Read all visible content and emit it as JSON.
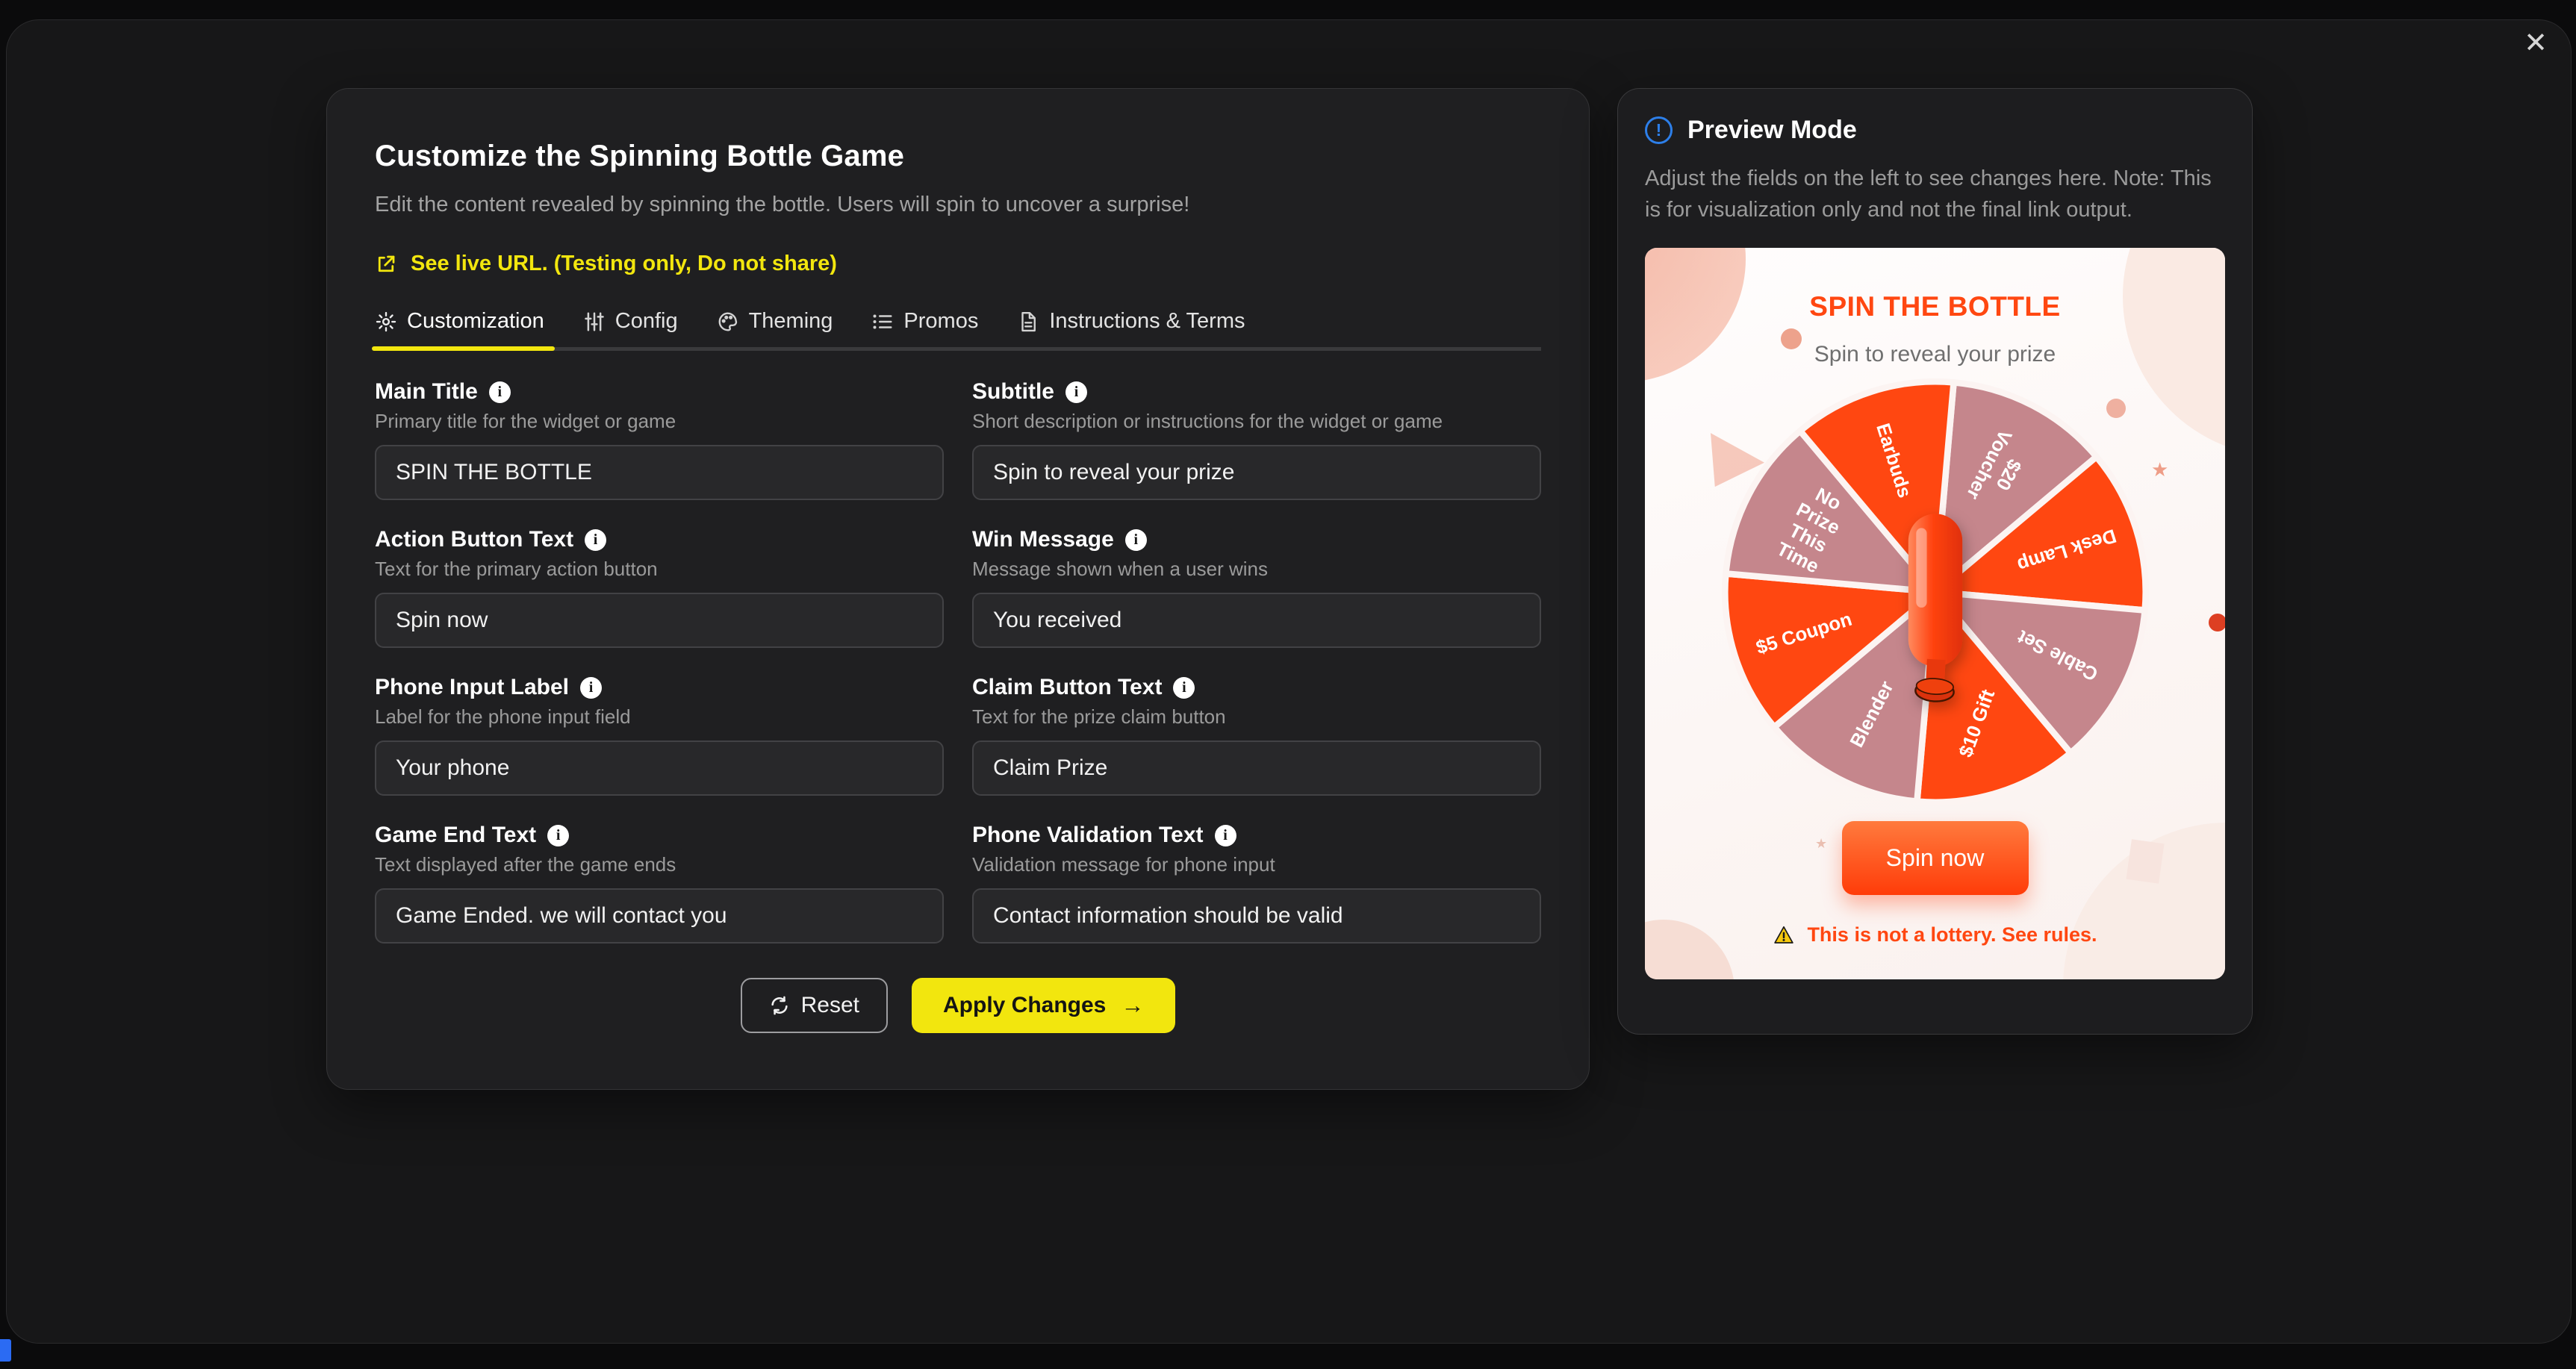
{
  "overlay": {
    "close_icon": "✕"
  },
  "dialog": {
    "title": "Customize the Spinning Bottle Game",
    "description": "Edit the content revealed by spinning the bottle. Users will spin to uncover a surprise!",
    "live_url_link": "See live URL. (Testing only, Do not share)",
    "tabs": [
      {
        "label": "Customization",
        "icon": "gear-icon",
        "active": true
      },
      {
        "label": "Config",
        "icon": "sliders-icon",
        "active": false
      },
      {
        "label": "Theming",
        "icon": "palette-icon",
        "active": false
      },
      {
        "label": "Promos",
        "icon": "list-icon",
        "active": false
      },
      {
        "label": "Instructions & Terms",
        "icon": "document-icon",
        "active": false
      }
    ],
    "fields": [
      {
        "label": "Main Title",
        "help": "Primary title for the widget or game",
        "value": "SPIN THE BOTTLE"
      },
      {
        "label": "Subtitle",
        "help": "Short description or instructions for the widget or game",
        "value": "Spin to reveal your prize"
      },
      {
        "label": "Action Button Text",
        "help": "Text for the primary action button",
        "value": "Spin now"
      },
      {
        "label": "Win Message",
        "help": "Message shown when a user wins",
        "value": "You received"
      },
      {
        "label": "Phone Input Label",
        "help": "Label for the phone input field",
        "value": "Your phone"
      },
      {
        "label": "Claim Button Text",
        "help": "Text for the prize claim button",
        "value": "Claim Prize"
      },
      {
        "label": "Game End Text",
        "help": "Text displayed after the game ends",
        "value": "Game Ended. we will contact you"
      },
      {
        "label": "Phone Validation Text",
        "help": "Validation message for phone input",
        "value": "Contact information should be valid"
      }
    ],
    "reset_label": "Reset",
    "apply_label": "Apply Changes",
    "apply_arrow": "→"
  },
  "preview": {
    "title": "Preview Mode",
    "note": "Adjust the fields on the left to see changes here. Note: This is for visualization only and not the final link output.",
    "card": {
      "title": "SPIN THE BOTTLE",
      "subtitle": "Spin to reveal your prize",
      "spin_button": "Spin now",
      "disclaimer": "This is not a lottery. See rules.",
      "wheel_segments": [
        {
          "label": "$20 Voucher",
          "color": "#c5868c"
        },
        {
          "label": "Desk Lamp",
          "color": "#ff4711"
        },
        {
          "label": "Cable Set",
          "color": "#c5868c"
        },
        {
          "label": "$10 Gift",
          "color": "#ff4711"
        },
        {
          "label": "Blender",
          "color": "#c5868c"
        },
        {
          "label": "$5 Coupon",
          "color": "#ff4711"
        },
        {
          "label": "No Prize This Time",
          "color": "#c5868c"
        },
        {
          "label": "Earbuds",
          "color": "#ff4711"
        }
      ]
    }
  },
  "colors": {
    "accent_yellow": "#f2e60e",
    "accent_orange": "#ff4711",
    "info_blue": "#2d7fe9",
    "wheel_rose": "#c5868c"
  }
}
